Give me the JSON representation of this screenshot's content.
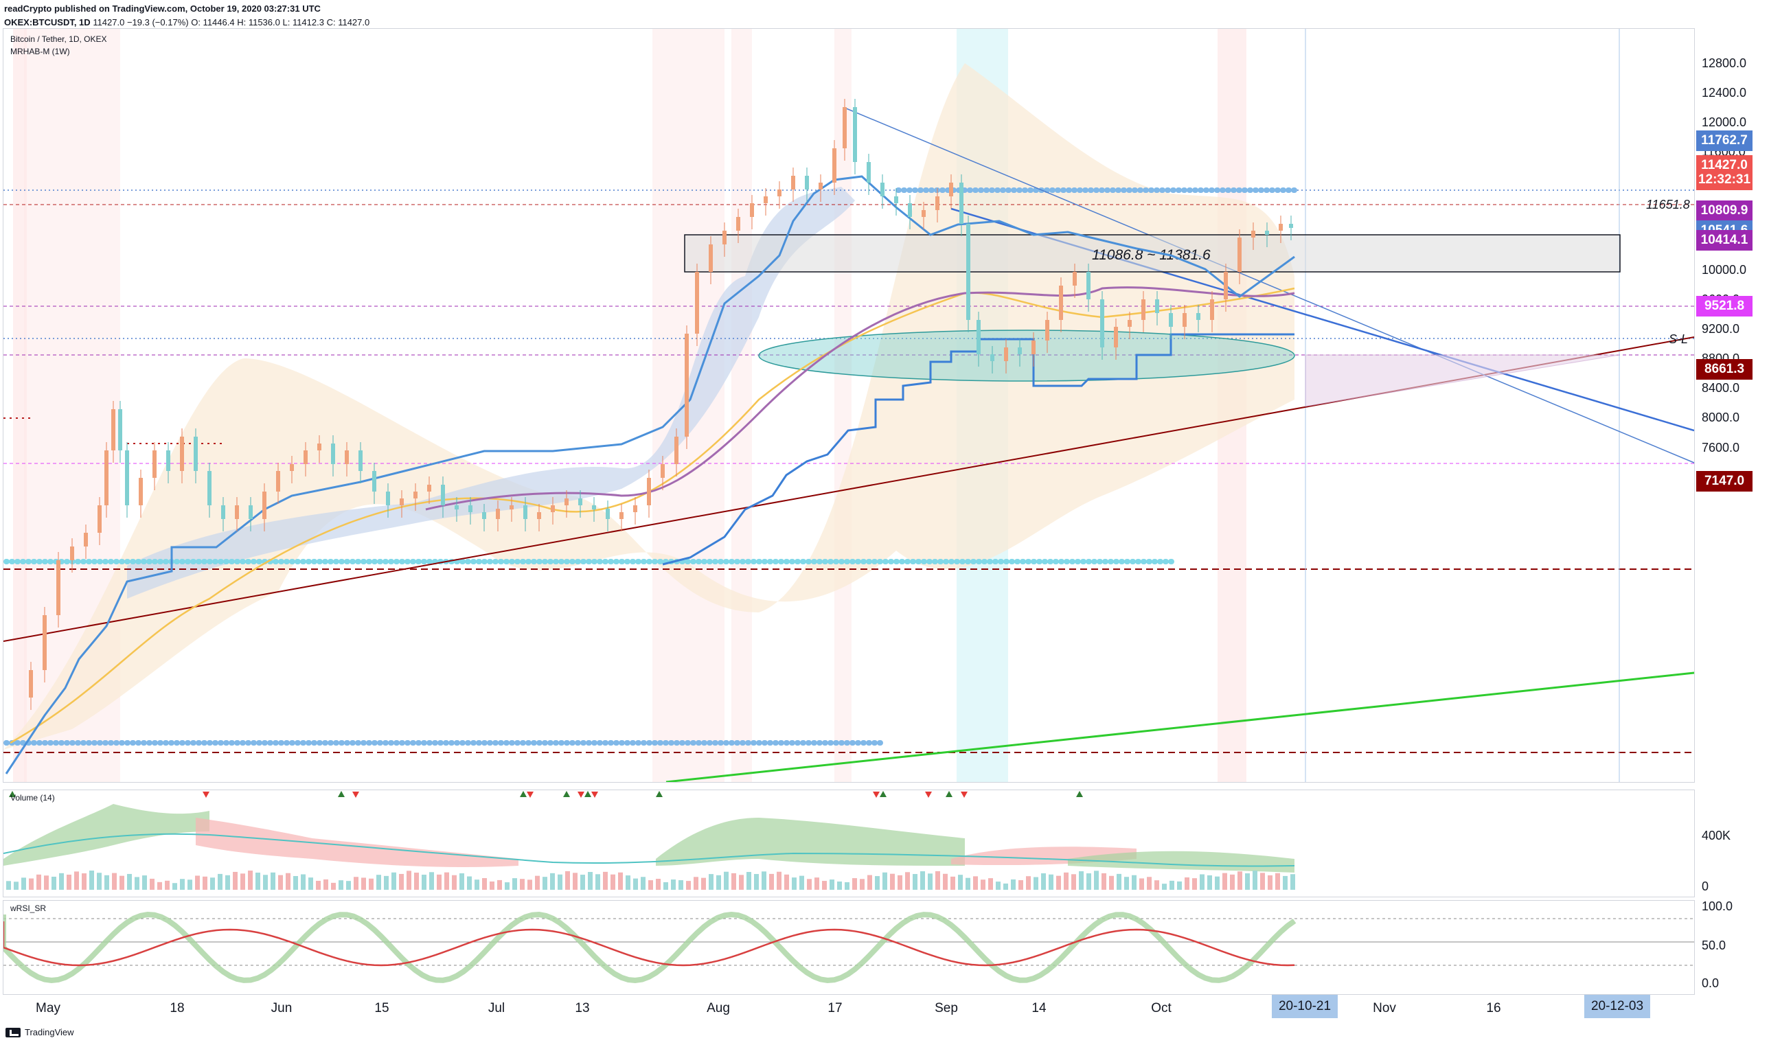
{
  "header": {
    "published_line": "readCrypto published on TradingView.com, October 19, 2020 03:27:31 UTC",
    "symbol": "OKEX:BTCUSDT, 1D",
    "last": "11427.0",
    "change": "−19.3 (−0.17%)",
    "o": "O: 11446.4",
    "h": "H: 11536.0",
    "l": "L: 11412.3",
    "c": "C: 11427.0"
  },
  "main_legend": {
    "title": "Bitcoin / Tether, 1D, OKEX",
    "indicator": "MRHAB-M (1W)"
  },
  "price_axis": {
    "ticks": [
      "12800.0",
      "12400.0",
      "12000.0",
      "11600.0",
      "10000.0",
      "9600.0",
      "9200.0",
      "8800.0",
      "8400.0",
      "8000.0",
      "7600.0"
    ],
    "tick_values": [
      12800,
      12400,
      12000,
      11600,
      10000,
      9600,
      9200,
      8800,
      8400,
      8000,
      7600
    ],
    "tags": [
      {
        "label": "11762.7",
        "value": 11762.7,
        "color": "#4f7fcf"
      },
      {
        "label": "11427.0",
        "value": 11427.0,
        "color": "#ef5350"
      },
      {
        "label": "12:32:31",
        "value": 11230,
        "color": "#ef5350"
      },
      {
        "label": "10809.9",
        "value": 10809.9,
        "color": "#9c27b0"
      },
      {
        "label": "10541.6",
        "value": 10541.6,
        "color": "#4f7fcf"
      },
      {
        "label": "10414.1",
        "value": 10414.1,
        "color": "#9c27b0"
      },
      {
        "label": "9521.8",
        "value": 9521.8,
        "color": "#e040fb"
      },
      {
        "label": "8661.3",
        "value": 8661.3,
        "color": "#8b0000"
      },
      {
        "label": "7147.0",
        "value": 7147.0,
        "color": "#8b0000"
      }
    ]
  },
  "annotations": {
    "box_label": "11086.8 ~ 11381.6",
    "level_label": "11651.8",
    "sl_label": "S-L"
  },
  "volume_panel": {
    "legend": "Volume (14)",
    "ticks": [
      "400K",
      "0"
    ]
  },
  "rsi_panel": {
    "legend": "wRSI_SR",
    "ticks": [
      "100.0",
      "50.0",
      "0.0"
    ]
  },
  "time_axis": {
    "labels": [
      "May",
      "18",
      "Jun",
      "15",
      "Jul",
      "13",
      "Aug",
      "17",
      "Sep",
      "14",
      "Oct",
      "Nov",
      "16"
    ],
    "highlights": [
      "20-10-21",
      "20-12-03"
    ]
  },
  "footer": {
    "brand": "TradingView"
  }
}
